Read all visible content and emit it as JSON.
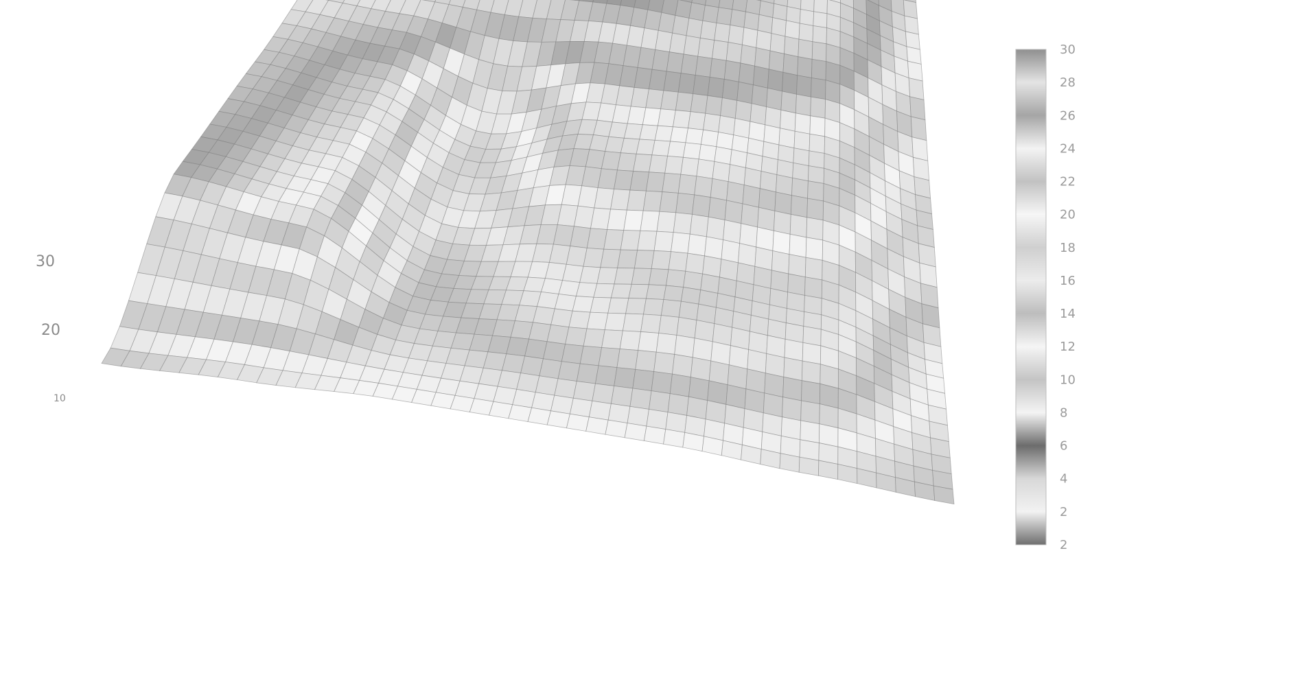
{
  "chart_data": {
    "type": "surface",
    "title": "",
    "xlabel": "",
    "ylabel": "",
    "zlabel": "",
    "z_axis_ticks": [
      "30",
      "20",
      "10"
    ],
    "z_range": [
      0,
      30
    ],
    "surface_z": [
      [
        10,
        11,
        12,
        12,
        12,
        11,
        10
      ],
      [
        26,
        24,
        14,
        16,
        18,
        17,
        12
      ],
      [
        27,
        25,
        18,
        23,
        24,
        23,
        18
      ],
      [
        29,
        29,
        30,
        30,
        29,
        28,
        24
      ],
      [
        29,
        30,
        30,
        30,
        30,
        29,
        26
      ]
    ],
    "colorbar": {
      "ticks": [
        "2",
        "2",
        "4",
        "6",
        "8",
        "10",
        "12",
        "14",
        "16",
        "18",
        "20",
        "22",
        "24",
        "26",
        "28",
        "30"
      ],
      "range": [
        0,
        30
      ],
      "colormap": [
        "#6e6e6e",
        "#f2f2f2",
        "#d8d8d8",
        "#6c6c6c",
        "#f4f4f4",
        "#c4c4c4",
        "#f5f5f5",
        "#bdbdbd",
        "#ececec",
        "#cfcfcf",
        "#f6f6f6",
        "#c2c2c2",
        "#f3f3f3",
        "#a5a5a5",
        "#e4e4e4",
        "#8f8f8f"
      ]
    },
    "grid": true,
    "legend_position": "right",
    "colors": {
      "mesh_line": "#7a7a7a",
      "text": "#8a8a8a"
    }
  }
}
